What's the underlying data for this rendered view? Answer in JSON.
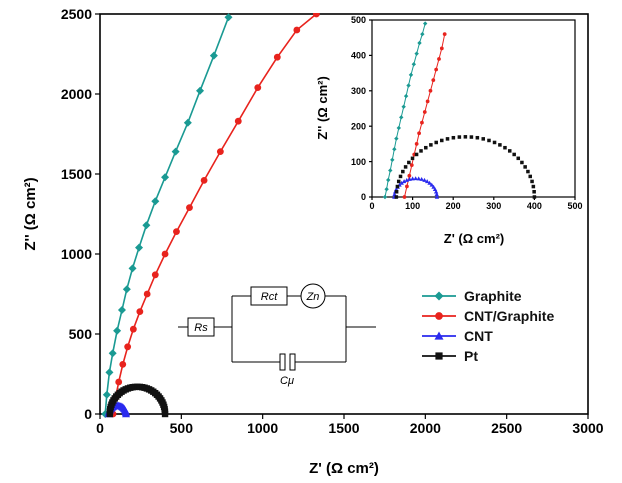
{
  "chart_data": [
    {
      "type": "scatter",
      "panel": "main",
      "xlabel": "Z' (Ω cm²)",
      "ylabel": "Z'' (Ω cm²)",
      "xlim": [
        0,
        3000
      ],
      "ylim": [
        0,
        2500
      ],
      "xticks": [
        "0",
        "500",
        "1000",
        "1500",
        "2000",
        "2500",
        "3000"
      ],
      "yticks": [
        "0",
        "500",
        "1000",
        "1500",
        "2000",
        "2500"
      ],
      "legend_position": "center-right",
      "series": [
        {
          "name": "Graphite",
          "color": "#1a9a93",
          "marker": "diamond",
          "line": true,
          "x": [
            32,
            42,
            58,
            78,
            105,
            135,
            165,
            200,
            240,
            285,
            340,
            400,
            465,
            540,
            615,
            700,
            790
          ],
          "y": [
            0,
            120,
            260,
            380,
            520,
            650,
            780,
            910,
            1040,
            1180,
            1330,
            1480,
            1640,
            1820,
            2020,
            2240,
            2480
          ]
        },
        {
          "name": "CNT/Graphite",
          "color": "#e8231d",
          "marker": "circle",
          "line": true,
          "x": [
            80,
            95,
            115,
            140,
            170,
            205,
            245,
            290,
            340,
            400,
            470,
            550,
            640,
            740,
            850,
            970,
            1090,
            1210,
            1330
          ],
          "y": [
            0,
            100,
            200,
            310,
            420,
            530,
            640,
            750,
            870,
            1000,
            1140,
            1290,
            1460,
            1640,
            1830,
            2040,
            2230,
            2400,
            2500
          ]
        },
        {
          "name": "CNT",
          "color": "#2a2aee",
          "marker": "triangle",
          "line": false,
          "semicircle": {
            "x_start": 55,
            "x_end": 160,
            "n": 22
          }
        },
        {
          "name": "Pt",
          "color": "#111111",
          "marker": "square",
          "line": false,
          "semicircle": {
            "x_start": 60,
            "x_end": 400,
            "n": 36
          }
        }
      ]
    },
    {
      "type": "scatter",
      "panel": "inset",
      "xlabel": "Z' (Ω cm²)",
      "ylabel": "Z'' (Ω cm²)",
      "xlim": [
        0,
        500
      ],
      "ylim": [
        0,
        500
      ],
      "xticks": [
        "0",
        "100",
        "200",
        "300",
        "400",
        "500"
      ],
      "yticks": [
        "0",
        "100",
        "200",
        "300",
        "400",
        "500"
      ],
      "series": [
        {
          "name": "Graphite",
          "color": "#1a9a93",
          "marker": "diamond",
          "line": true,
          "x": [
            32,
            36,
            40,
            45,
            50,
            55,
            60,
            66,
            72,
            78,
            84,
            90,
            96,
            103,
            110,
            117,
            124,
            131
          ],
          "y": [
            0,
            22,
            48,
            75,
            105,
            135,
            165,
            195,
            225,
            255,
            285,
            315,
            345,
            375,
            405,
            435,
            460,
            490
          ]
        },
        {
          "name": "CNT/Graphite",
          "color": "#e8231d",
          "marker": "circle",
          "line": true,
          "x": [
            80,
            86,
            92,
            98,
            104,
            110,
            116,
            123,
            130,
            137,
            144,
            151,
            158,
            165,
            172,
            179
          ],
          "y": [
            0,
            30,
            60,
            90,
            120,
            150,
            180,
            210,
            240,
            270,
            300,
            330,
            360,
            390,
            420,
            460
          ]
        },
        {
          "name": "CNT",
          "color": "#2a2aee",
          "marker": "triangle",
          "line": false,
          "semicircle": {
            "x_start": 55,
            "x_end": 160,
            "n": 22
          }
        },
        {
          "name": "Pt",
          "color": "#111111",
          "marker": "square",
          "line": false,
          "semicircle": {
            "x_start": 60,
            "x_end": 400,
            "n": 36
          }
        }
      ]
    }
  ],
  "circuit": {
    "labels": {
      "rs": "Rs",
      "rct": "Rct",
      "zn": "Zn",
      "cmu": "Cμ"
    }
  }
}
